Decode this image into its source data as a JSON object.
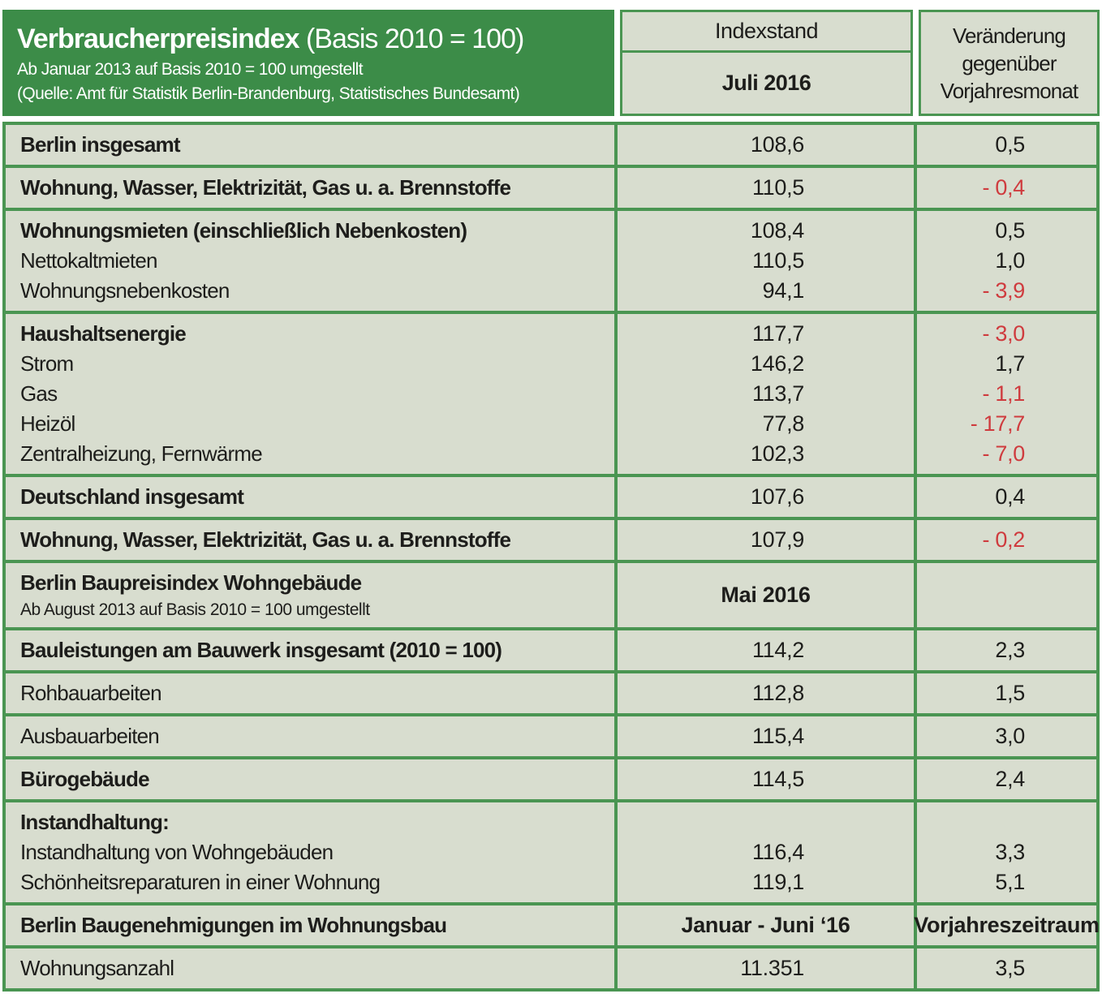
{
  "colors": {
    "green": "#3c8c48",
    "border": "#4a9552",
    "cellbg": "#d8ddcf",
    "red": "#cf3b3e",
    "text": "#1d1d1b"
  },
  "chart_data": {
    "type": "table",
    "title": "Verbraucherpreisindex",
    "title_note": "(Basis 2010 = 100)",
    "subtitle": "Ab Januar 2013 auf Basis 2010 = 100 umgestellt",
    "source": "(Quelle: Amt für Statistik Berlin-Brandenburg, Statistisches Bundesamt)",
    "columns": {
      "index_label": "Indexstand",
      "index_period": "Juli 2016",
      "change_label": "Veränderung gegenüber Vorjahresmonat"
    },
    "blocks": [
      {
        "lines": [
          {
            "label": "Berlin insgesamt",
            "bold": true,
            "index": "108,6",
            "change": "0,5",
            "negative": false
          }
        ]
      },
      {
        "lines": [
          {
            "label": "Wohnung, Wasser, Elektrizität, Gas u. a. Brennstoffe",
            "bold": true,
            "index": "110,5",
            "change": "- 0,4",
            "negative": true
          }
        ]
      },
      {
        "lines": [
          {
            "label": "Wohnungsmieten (einschließlich Nebenkosten)",
            "bold": true,
            "index": "108,4",
            "change": "0,5",
            "negative": false
          },
          {
            "label": "Nettokaltmieten",
            "bold": false,
            "index": "110,5",
            "change": "1,0",
            "negative": false
          },
          {
            "label": "Wohnungsnebenkosten",
            "bold": false,
            "index": "94,1",
            "change": "- 3,9",
            "negative": true
          }
        ]
      },
      {
        "lines": [
          {
            "label": "Haushaltsenergie",
            "bold": true,
            "index": "117,7",
            "change": "- 3,0",
            "negative": true
          },
          {
            "label": "Strom",
            "bold": false,
            "index": "146,2",
            "change": "1,7",
            "negative": false
          },
          {
            "label": "Gas",
            "bold": false,
            "index": "113,7",
            "change": "- 1,1",
            "negative": true
          },
          {
            "label": "Heizöl",
            "bold": false,
            "index": "77,8",
            "change": "- 17,7",
            "negative": true
          },
          {
            "label": "Zentralheizung, Fernwärme",
            "bold": false,
            "index": "102,3",
            "change": "- 7,0",
            "negative": true
          }
        ]
      },
      {
        "lines": [
          {
            "label": "Deutschland insgesamt",
            "bold": true,
            "index": "107,6",
            "change": "0,4",
            "negative": false
          }
        ]
      },
      {
        "lines": [
          {
            "label": "Wohnung, Wasser, Elektrizität, Gas u. a. Brennstoffe",
            "bold": true,
            "index": "107,9",
            "change": "- 0,2",
            "negative": true
          }
        ]
      },
      {
        "section": {
          "title": "Berlin Baupreisindex Wohngebäude",
          "subtitle": "Ab August 2013 auf Basis 2010 = 100 umgestellt",
          "period": "Mai 2016"
        }
      },
      {
        "lines": [
          {
            "label": "Bauleistungen am Bauwerk insgesamt (2010 = 100)",
            "bold": true,
            "index": "114,2",
            "change": "2,3",
            "negative": false
          }
        ]
      },
      {
        "lines": [
          {
            "label": "Rohbauarbeiten",
            "bold": false,
            "index": "112,8",
            "change": "1,5",
            "negative": false
          }
        ]
      },
      {
        "lines": [
          {
            "label": "Ausbauarbeiten",
            "bold": false,
            "index": "115,4",
            "change": "3,0",
            "negative": false
          }
        ]
      },
      {
        "lines": [
          {
            "label": "Bürogebäude",
            "bold": true,
            "index": "114,5",
            "change": "2,4",
            "negative": false
          }
        ]
      },
      {
        "lines": [
          {
            "label": "Instandhaltung:",
            "bold": true,
            "index": "",
            "change": "",
            "negative": false
          },
          {
            "label": "Instandhaltung von Wohngebäuden",
            "bold": false,
            "index": "116,4",
            "change": "3,3",
            "negative": false
          },
          {
            "label": "Schönheitsreparaturen in einer Wohnung",
            "bold": false,
            "index": "119,1",
            "change": "5,1",
            "negative": false
          }
        ]
      },
      {
        "section2": {
          "title": "Berlin Baugenehmigungen im Wohnungsbau",
          "period": "Januar - Juni ‘16",
          "right": "Vorjahreszeitraum"
        }
      },
      {
        "lines": [
          {
            "label": "Wohnungsanzahl",
            "bold": false,
            "index": "11.351",
            "change": "3,5",
            "negative": false
          }
        ]
      }
    ]
  }
}
